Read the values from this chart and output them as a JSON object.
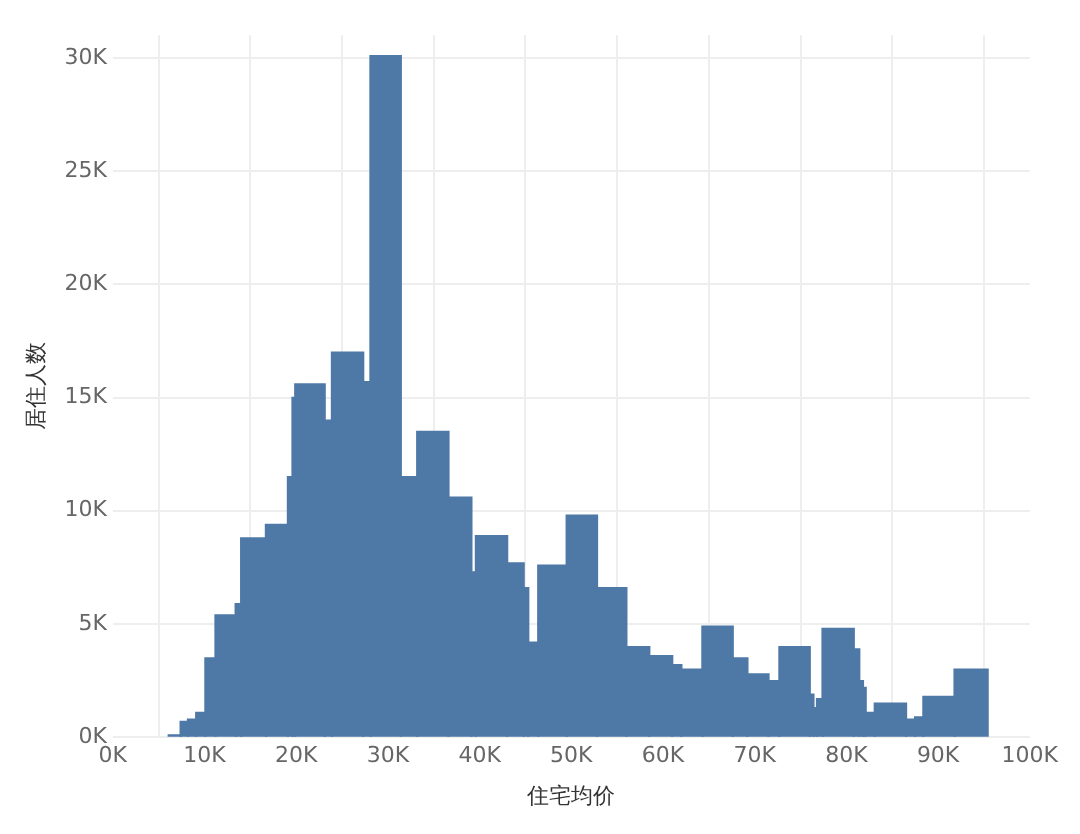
{
  "chart_data": {
    "type": "histogram",
    "xlabel": "住宅均价",
    "ylabel": "居住人数",
    "color": "#4e79a7",
    "grid": true,
    "bins": [
      6100,
      7400,
      8200,
      9100,
      10100,
      11200,
      13400,
      14000,
      16700,
      19100,
      19600,
      19900,
      23100,
      23900,
      27300,
      28100,
      31400,
      33200,
      36600,
      39100,
      39600,
      43000,
      44800,
      45300,
      46400,
      49500,
      52800,
      56000,
      58500,
      61000,
      62000,
      64300,
      67600,
      69200,
      71500,
      72700,
      76000,
      76400,
      76800,
      77400,
      80800,
      81400,
      81800,
      82100,
      83100,
      86500,
      87500,
      88400,
      91800,
      95400
    ],
    "values": [
      100,
      700,
      800,
      1100,
      3500,
      5400,
      5900,
      8800,
      9400,
      11500,
      15000,
      15600,
      14000,
      17000,
      15700,
      30100,
      11500,
      13500,
      10600,
      7300,
      8900,
      7700,
      6600,
      4200,
      7600,
      9800,
      6600,
      4000,
      3600,
      3200,
      3000,
      4900,
      3500,
      2800,
      2500,
      4000,
      1900,
      1300,
      1700,
      4800,
      3900,
      2500,
      2200,
      1100,
      1500,
      800,
      900,
      1800,
      3000
    ],
    "xlim": [
      0,
      100000
    ],
    "ylim": [
      0,
      31000
    ],
    "xticks": [
      {
        "value": 0,
        "label": "0K"
      },
      {
        "value": 10000,
        "label": "10K"
      },
      {
        "value": 20000,
        "label": "20K"
      },
      {
        "value": 30000,
        "label": "30K"
      },
      {
        "value": 40000,
        "label": "40K"
      },
      {
        "value": 50000,
        "label": "50K"
      },
      {
        "value": 60000,
        "label": "60K"
      },
      {
        "value": 70000,
        "label": "70K"
      },
      {
        "value": 80000,
        "label": "80K"
      },
      {
        "value": 90000,
        "label": "90K"
      },
      {
        "value": 100000,
        "label": "100K"
      }
    ],
    "yticks": [
      {
        "value": 0,
        "label": "0K"
      },
      {
        "value": 5000,
        "label": "5K"
      },
      {
        "value": 10000,
        "label": "10K"
      },
      {
        "value": 15000,
        "label": "15K"
      },
      {
        "value": 20000,
        "label": "20K"
      },
      {
        "value": 25000,
        "label": "25K"
      },
      {
        "value": 30000,
        "label": "30K"
      }
    ]
  }
}
